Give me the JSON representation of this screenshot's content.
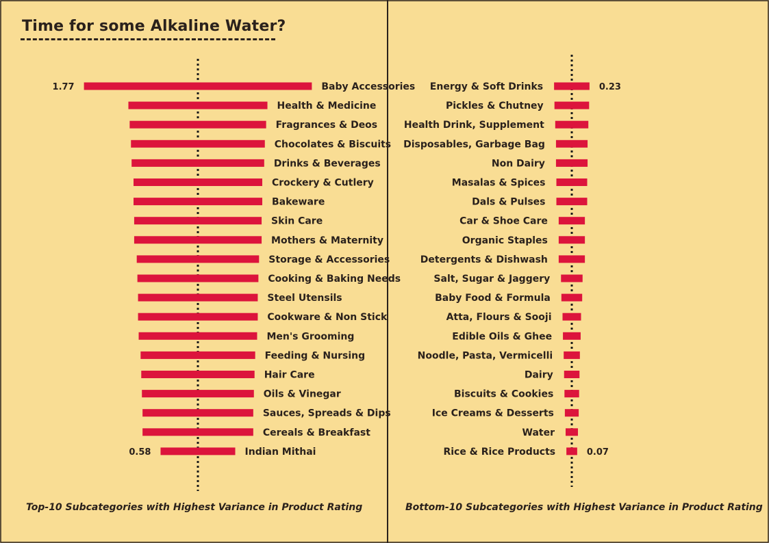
{
  "title": "Time for some Alkaline Water?",
  "chart_data": [
    {
      "type": "bar",
      "orientation": "horizontal",
      "caption": "Top-10 Subcategories with Highest Variance in Product Rating",
      "categories": [
        "Baby Accessories",
        "Health & Medicine",
        "Fragrances & Deos",
        "Chocolates & Biscuits",
        "Drinks & Beverages",
        "Crockery & Cutlery",
        "Bakeware",
        "Skin Care",
        "Mothers & Maternity",
        "Storage & Accessories",
        "Cooking & Baking Needs",
        "Steel Utensils",
        "Cookware & Non Stick",
        "Men's Grooming",
        "Feeding & Nursing",
        "Hair Care",
        "Oils & Vinegar",
        "Sauces, Spreads & Dips",
        "Cereals & Breakfast",
        "Indian Mithai"
      ],
      "values": [
        1.77,
        1.08,
        1.06,
        1.04,
        1.03,
        1.0,
        1.0,
        0.99,
        0.99,
        0.95,
        0.94,
        0.93,
        0.93,
        0.92,
        0.89,
        0.88,
        0.87,
        0.86,
        0.86,
        0.58
      ],
      "value_labels": {
        "first": "1.77",
        "last": "0.58"
      },
      "reference_line": "dotted vertical",
      "grid": false,
      "legend": "none",
      "bar_color": "#dc143c"
    },
    {
      "type": "bar",
      "orientation": "horizontal",
      "caption": "Bottom-10 Subcategories with Highest Variance in Product Rating",
      "categories": [
        "Energy & Soft Drinks",
        "Pickles & Chutney",
        "Health Drink, Supplement",
        "Disposables, Garbage Bag",
        "Non Dairy",
        "Masalas & Spices",
        "Dals & Pulses",
        "Car & Shoe Care",
        "Organic Staples",
        "Detergents & Dishwash",
        "Salt, Sugar & Jaggery",
        "Baby Food & Formula",
        "Atta, Flours & Sooji",
        "Edible Oils & Ghee",
        "Noodle, Pasta, Vermicelli",
        "Dairy",
        "Biscuits & Cookies",
        "Ice Creams & Desserts",
        "Water",
        "Rice & Rice Products"
      ],
      "values": [
        0.23,
        0.225,
        0.215,
        0.205,
        0.205,
        0.2,
        0.2,
        0.17,
        0.17,
        0.17,
        0.14,
        0.135,
        0.12,
        0.115,
        0.105,
        0.1,
        0.095,
        0.09,
        0.08,
        0.07
      ],
      "value_labels": {
        "first": "0.23",
        "last": "0.07"
      },
      "reference_line": "dotted vertical",
      "grid": false,
      "legend": "none",
      "bar_color": "#dc143c"
    }
  ]
}
